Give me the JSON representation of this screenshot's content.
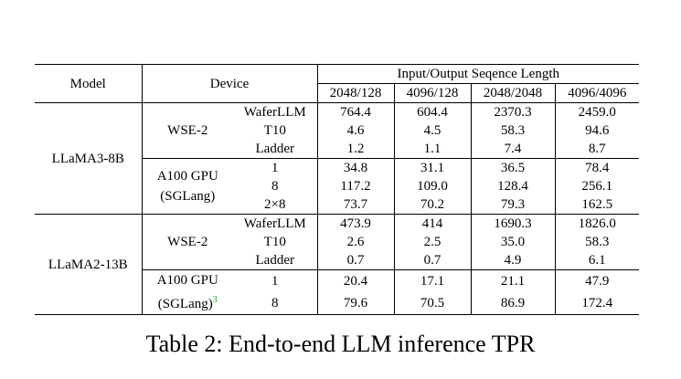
{
  "table": {
    "header": {
      "model": "Model",
      "device": "Device",
      "seq": "Input/Output Seqence Length",
      "seq_cols": [
        "2048/128",
        "4096/128",
        "2048/2048",
        "4096/4096"
      ]
    },
    "groups": [
      {
        "model": "LLaMA3-8B",
        "devices": [
          {
            "name": "WSE-2",
            "rows": [
              {
                "config": "WaferLLM",
                "values": [
                  "764.4",
                  "604.4",
                  "2370.3",
                  "2459.0"
                ]
              },
              {
                "config": "T10",
                "values": [
                  "4.6",
                  "4.5",
                  "58.3",
                  "94.6"
                ]
              },
              {
                "config": "Ladder",
                "values": [
                  "1.2",
                  "1.1",
                  "7.4",
                  "8.7"
                ]
              }
            ]
          },
          {
            "name": "A100 GPU",
            "sub": "(SGLang)",
            "rows": [
              {
                "config": "1",
                "values": [
                  "34.8",
                  "31.1",
                  "36.5",
                  "78.4"
                ]
              },
              {
                "config": "8",
                "values": [
                  "117.2",
                  "109.0",
                  "128.4",
                  "256.1"
                ]
              },
              {
                "config": "2×8",
                "values": [
                  "73.7",
                  "70.2",
                  "79.3",
                  "162.5"
                ]
              }
            ]
          }
        ]
      },
      {
        "model": "LLaMA2-13B",
        "devices": [
          {
            "name": "WSE-2",
            "rows": [
              {
                "config": "WaferLLM",
                "values": [
                  "473.9",
                  "414",
                  "1690.3",
                  "1826.0"
                ]
              },
              {
                "config": "T10",
                "values": [
                  "2.6",
                  "2.5",
                  "35.0",
                  "58.3"
                ]
              },
              {
                "config": "Ladder",
                "values": [
                  "0.7",
                  "0.7",
                  "4.9",
                  "6.1"
                ]
              }
            ]
          },
          {
            "name": "A100 GPU",
            "sub": "(SGLang)",
            "footnote": "3",
            "rows": [
              {
                "config": "1",
                "values": [
                  "20.4",
                  "17.1",
                  "21.1",
                  "47.9"
                ]
              },
              {
                "config": "8",
                "values": [
                  "79.6",
                  "70.5",
                  "86.9",
                  "172.4"
                ]
              }
            ]
          }
        ]
      }
    ]
  },
  "caption": "Table 2: End-to-end LLM inference TPR"
}
